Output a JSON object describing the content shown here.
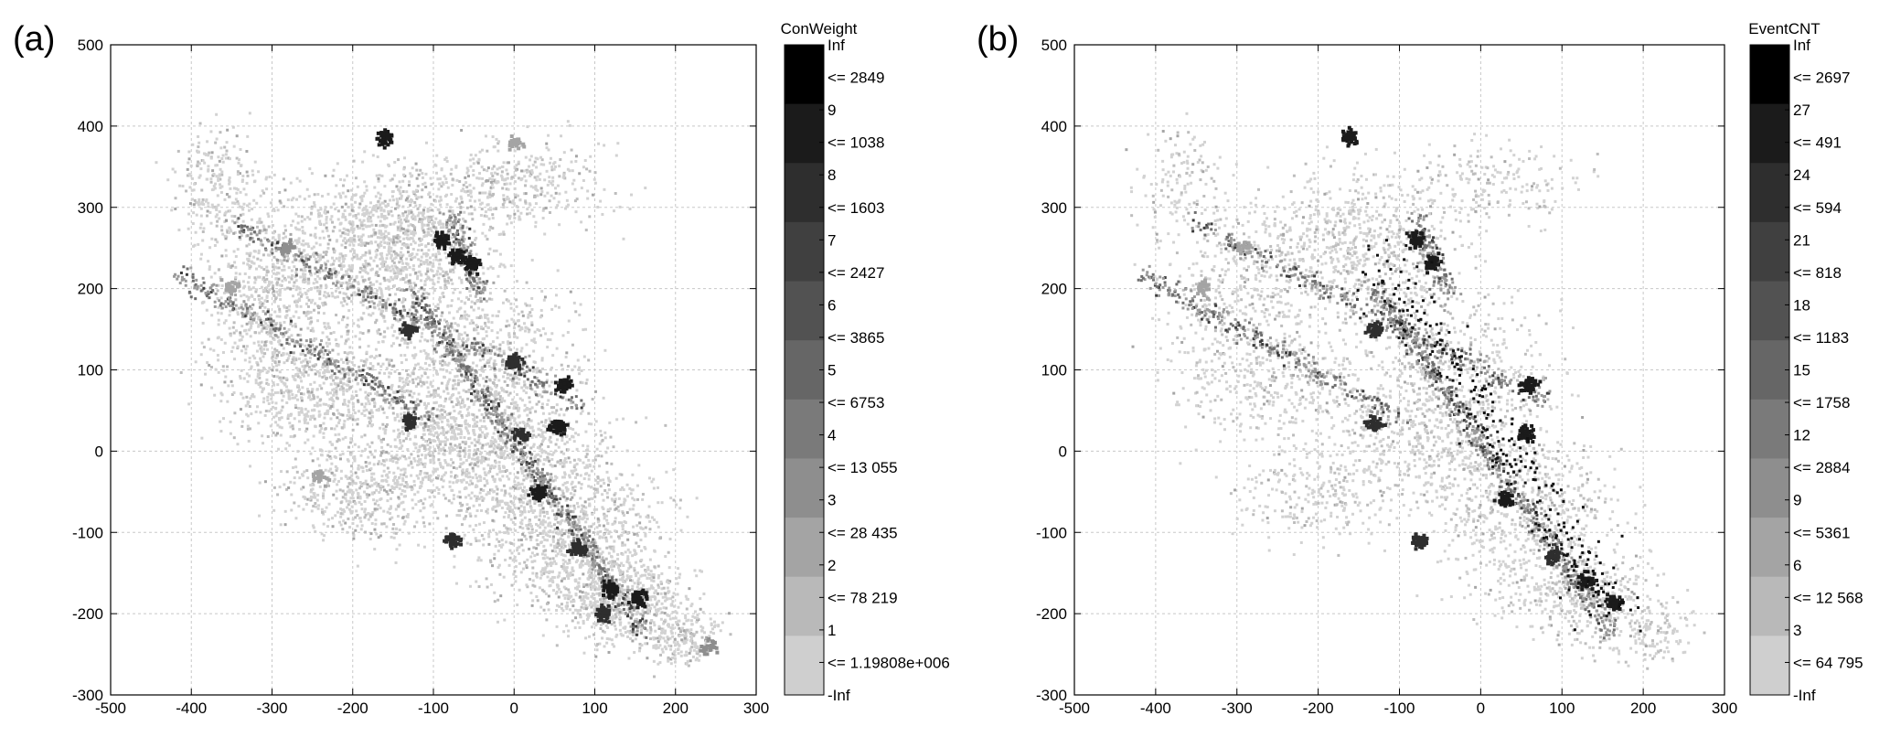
{
  "chart_data": [
    {
      "type": "scatter",
      "panel_label": "(a)",
      "xlim": [
        -500,
        300
      ],
      "ylim": [
        -300,
        500
      ],
      "x_ticks": [
        "-500",
        "-400",
        "-300",
        "-200",
        "-100",
        "0",
        "100",
        "200",
        "300"
      ],
      "y_ticks": [
        "500",
        "400",
        "300",
        "200",
        "100",
        "0",
        "-100",
        "-200",
        "-300"
      ],
      "grid": true,
      "colorbar_title": "ConWeight",
      "colorbar_labels": [
        "Inf",
        "<= 2849",
        "9",
        "<= 1038",
        "8",
        "<= 1603",
        "7",
        "<= 2427",
        "6",
        "<= 3865",
        "5",
        "<= 6753",
        "4",
        "<= 13 055",
        "3",
        "<= 28 435",
        "2",
        "<= 78 219",
        "1",
        "<= 1.19808e+006",
        "-Inf"
      ],
      "colorbar_colors": [
        "#000000",
        "#1b1b1b",
        "#2e2e2e",
        "#404040",
        "#525252",
        "#666666",
        "#7a7a7a",
        "#8e8e8e",
        "#a4a4a4",
        "#b9b9b9",
        "#cfcfcf"
      ],
      "density_regions": [
        {
          "x": -160,
          "y": 386,
          "level": 9
        },
        {
          "x": -90,
          "y": 260,
          "level": 9
        },
        {
          "x": -70,
          "y": 240,
          "level": 9
        },
        {
          "x": -50,
          "y": 230,
          "level": 9
        },
        {
          "x": -130,
          "y": 150,
          "level": 8
        },
        {
          "x": 0,
          "y": 110,
          "level": 8
        },
        {
          "x": 60,
          "y": 80,
          "level": 9
        },
        {
          "x": 55,
          "y": 30,
          "level": 9
        },
        {
          "x": -130,
          "y": 35,
          "level": 8
        },
        {
          "x": 10,
          "y": 20,
          "level": 8
        },
        {
          "x": 30,
          "y": -50,
          "level": 9
        },
        {
          "x": 80,
          "y": -120,
          "level": 8
        },
        {
          "x": -75,
          "y": -110,
          "level": 8
        },
        {
          "x": 120,
          "y": -170,
          "level": 9
        },
        {
          "x": 155,
          "y": -180,
          "level": 9
        },
        {
          "x": 110,
          "y": -200,
          "level": 8
        },
        {
          "x": -280,
          "y": 250,
          "level": 3
        },
        {
          "x": -350,
          "y": 200,
          "level": 2
        },
        {
          "x": 0,
          "y": 380,
          "level": 2
        },
        {
          "x": -240,
          "y": -30,
          "level": 2
        },
        {
          "x": 240,
          "y": -240,
          "level": 3
        }
      ]
    },
    {
      "type": "scatter",
      "panel_label": "(b)",
      "xlim": [
        -500,
        300
      ],
      "ylim": [
        -300,
        500
      ],
      "x_ticks": [
        "-500",
        "-400",
        "-300",
        "-200",
        "-100",
        "0",
        "100",
        "200",
        "300"
      ],
      "y_ticks": [
        "500",
        "400",
        "300",
        "200",
        "100",
        "0",
        "-100",
        "-200",
        "-300"
      ],
      "grid": true,
      "colorbar_title": "EventCNT",
      "colorbar_labels": [
        "Inf",
        "<= 2697",
        "27",
        "<= 491",
        "24",
        "<= 594",
        "21",
        "<= 818",
        "18",
        "<= 1183",
        "15",
        "<= 1758",
        "12",
        "<= 2884",
        "9",
        "<= 5361",
        "6",
        "<= 12 568",
        "3",
        "<= 64 795",
        "-Inf"
      ],
      "colorbar_colors": [
        "#000000",
        "#1b1b1b",
        "#2e2e2e",
        "#404040",
        "#525252",
        "#666666",
        "#7a7a7a",
        "#8e8e8e",
        "#a4a4a4",
        "#b9b9b9",
        "#cfcfcf"
      ],
      "density_regions": [
        {
          "x": -160,
          "y": 386,
          "level": 9
        },
        {
          "x": -80,
          "y": 260,
          "level": 9
        },
        {
          "x": -60,
          "y": 230,
          "level": 9
        },
        {
          "x": -130,
          "y": 150,
          "level": 8
        },
        {
          "x": 60,
          "y": 80,
          "level": 9
        },
        {
          "x": 55,
          "y": 20,
          "level": 9
        },
        {
          "x": -130,
          "y": 35,
          "level": 8
        },
        {
          "x": 30,
          "y": -60,
          "level": 9
        },
        {
          "x": 90,
          "y": -130,
          "level": 8
        },
        {
          "x": -75,
          "y": -110,
          "level": 8
        },
        {
          "x": 130,
          "y": -160,
          "level": 9
        },
        {
          "x": 165,
          "y": -185,
          "level": 9
        },
        {
          "x": -290,
          "y": 250,
          "level": 2
        },
        {
          "x": -340,
          "y": 200,
          "level": 2
        }
      ]
    }
  ]
}
